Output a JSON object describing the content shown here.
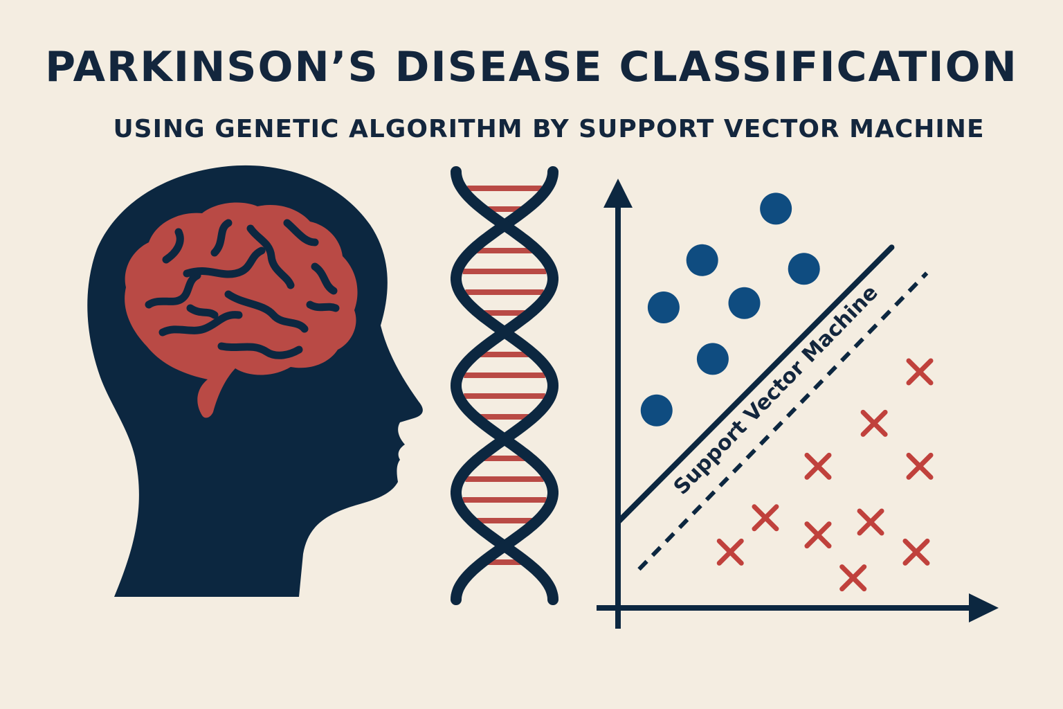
{
  "title": "PARKINSON’S DISEASE CLASSIFICATION",
  "subtitle": "USING GENETIC ALGORITHM BY SUPPORT VECTOR MACHINE",
  "svm_label": "Support Vector Machine",
  "colors": {
    "background": "#f4ede1",
    "navy": "#0c2740",
    "brain_red": "#b94a45",
    "class_blue": "#0f4c80",
    "class_red": "#c0413c"
  },
  "icons": {
    "head": "human-head-silhouette-icon",
    "brain": "brain-icon",
    "dna": "dna-double-helix-icon"
  },
  "chart_data": {
    "type": "scatter",
    "series": [
      {
        "marker": "circle",
        "color": "#0f4c80",
        "points": [
          [
            4.5,
            9.3
          ],
          [
            2.4,
            8.1
          ],
          [
            1.3,
            7.0
          ],
          [
            3.6,
            7.1
          ],
          [
            5.3,
            7.9
          ],
          [
            2.7,
            5.8
          ],
          [
            1.1,
            4.6
          ]
        ]
      },
      {
        "marker": "cross",
        "color": "#c0413c",
        "points": [
          [
            8.6,
            5.5
          ],
          [
            7.3,
            4.3
          ],
          [
            8.6,
            3.3
          ],
          [
            5.7,
            3.3
          ],
          [
            4.2,
            2.1
          ],
          [
            7.2,
            2.0
          ],
          [
            5.7,
            1.7
          ],
          [
            3.2,
            1.3
          ],
          [
            8.5,
            1.3
          ],
          [
            6.7,
            0.7
          ]
        ]
      }
    ],
    "decision_boundary": {
      "style": "solid",
      "from": [
        0,
        2
      ],
      "to": [
        7.8,
        8.4
      ]
    },
    "margin": {
      "style": "dashed",
      "from": [
        0.6,
        0.9
      ],
      "to": [
        8.8,
        7.8
      ]
    },
    "xlim": [
      0,
      10
    ],
    "ylim": [
      0,
      10
    ]
  }
}
